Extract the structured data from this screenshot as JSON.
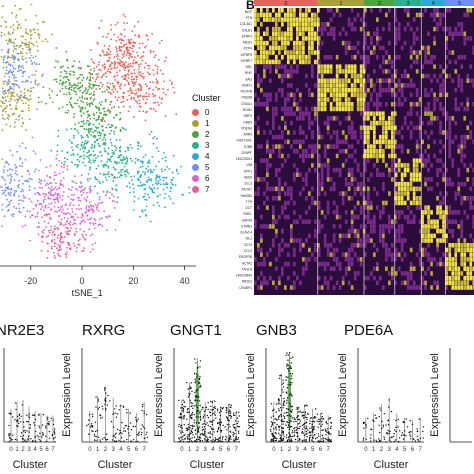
{
  "panel_b_label": "B",
  "tsne_xlabel": "tSNE_1",
  "tsne_xticks": [
    "-20",
    "0",
    "20",
    "40"
  ],
  "legend_title": "Cluster",
  "clusters": [
    {
      "label": "0",
      "color": "#e8645a"
    },
    {
      "label": "1",
      "color": "#a7a036"
    },
    {
      "label": "2",
      "color": "#4ca23f"
    },
    {
      "label": "3",
      "color": "#2bb08f"
    },
    {
      "label": "4",
      "color": "#2aa9d2"
    },
    {
      "label": "5",
      "color": "#6f8ff5"
    },
    {
      "label": "6",
      "color": "#d666d3"
    },
    {
      "label": "7",
      "color": "#e8609a"
    }
  ],
  "heatmap_bar_labels": [
    "0",
    "1",
    "2",
    "3",
    "4",
    "5"
  ],
  "heatmap_genes": [
    "MGP",
    "PTN",
    "COL1A1",
    "COL3A1",
    "CALB1",
    "ELF3",
    "COL18A1",
    "SFRP2",
    "MEG3",
    "CRYAB",
    "PCP4",
    "IGFBP5",
    "IGFBP7",
    "NRL",
    "RHO",
    "SAG",
    "GNAT1",
    "RCVRN",
    "PDE6B",
    "GNGT1",
    "CNGA1",
    "ROM1",
    "RBP3",
    "PDC",
    "GNB3",
    "PDE6H",
    "ARR3",
    "HIST1H4C",
    "TUBB",
    "CENPF",
    "MKI67",
    "TOP2A",
    "LINC00261",
    "VIM",
    "SPP1",
    "HES6",
    "DLL3",
    "ATOH7",
    "HIST2H2A",
    "HMGB2",
    "TTR",
    "DCT",
    "PMEL",
    "TYRP1",
    "GAP43",
    "STMN2",
    "ELAVL4",
    "POU4F2",
    "PRPH",
    "ISL1",
    "CD74",
    "HLA-DRA",
    "CCL3",
    "ITM2A",
    "PDGFRB",
    "ACTA2",
    "TAGLN",
    "LINC00844",
    "NR2E3",
    "CRABP1"
  ],
  "heatmap_sample_labels": [
    "MGP",
    "PTN",
    "COL3A1",
    "CALB1",
    "SFRP2",
    "MEG3",
    "PCP4",
    "IGFBP5",
    "IGFBP7",
    "NRL",
    "RHO",
    "SAG",
    "GNAT1",
    "RCVRN",
    "PDE6B",
    "CNGA1",
    "ROM1",
    "RBP3",
    "GNB3",
    "PDE6H",
    "ARR3",
    "HIST1H4C",
    "TUBB",
    "CENPF",
    "LINC00261",
    "VIM",
    "SPP1",
    "HES6",
    "DLL3",
    "ATOH7",
    "HMGB2",
    "TTR",
    "DCT",
    "PMEL",
    "GAP43",
    "STMN2",
    "ELAVL4",
    "ISL1",
    "CD74",
    "CCL3",
    "PDGFRB",
    "ACTA2",
    "TAGLN",
    "LINC00844",
    "NR2E3",
    "CRABP1"
  ],
  "violin_ylabel": "Expression Level",
  "violin_xlabel": "Cluster",
  "genes": [
    "NR2E3",
    "RXRG",
    "GNGT1",
    "GNB3",
    "PDE6A"
  ],
  "chart_data": [
    {
      "type": "scatter",
      "title": "",
      "xlabel": "tSNE_1",
      "ylabel": "",
      "xlim": [
        -32,
        46
      ],
      "xticks": [
        -20,
        0,
        20,
        40
      ],
      "legend": {
        "title": "Cluster",
        "position": "right"
      },
      "series": [
        {
          "name": "0",
          "centers": [
            [
              18,
              30
            ],
            [
              12,
              20
            ],
            [
              24,
              15
            ]
          ]
        },
        {
          "name": "1",
          "centers": [
            [
              -25,
              34
            ],
            [
              -28,
              10
            ]
          ]
        },
        {
          "name": "2",
          "centers": [
            [
              -3,
              16
            ],
            [
              6,
              5
            ]
          ]
        },
        {
          "name": "3",
          "centers": [
            [
              2,
              -8
            ],
            [
              14,
              -12
            ]
          ]
        },
        {
          "name": "4",
          "centers": [
            [
              28,
              -20
            ]
          ]
        },
        {
          "name": "5",
          "centers": [
            [
              -28,
              22
            ],
            [
              -26,
              -22
            ]
          ]
        },
        {
          "name": "6",
          "centers": [
            [
              -12,
              -26
            ],
            [
              2,
              -30
            ]
          ]
        },
        {
          "name": "7",
          "centers": [
            [
              -8,
              -42
            ]
          ]
        }
      ]
    },
    {
      "type": "heatmap",
      "columns_clusters": [
        "0",
        "1",
        "2",
        "3",
        "4",
        "5"
      ],
      "column_fraction": [
        0.29,
        0.21,
        0.14,
        0.12,
        0.11,
        0.13
      ],
      "marker_blocks": [
        {
          "cluster": "0",
          "gene_range": [
            0,
            12
          ]
        },
        {
          "cluster": "1",
          "gene_range": [
            12,
            22
          ]
        },
        {
          "cluster": "2",
          "gene_range": [
            22,
            32
          ]
        },
        {
          "cluster": "3",
          "gene_range": [
            32,
            42
          ]
        },
        {
          "cluster": "4",
          "gene_range": [
            42,
            50
          ]
        },
        {
          "cluster": "5",
          "gene_range": [
            50,
            60
          ]
        }
      ]
    },
    {
      "type": "violin",
      "xlabel": "Cluster",
      "ylabel": "Expression Level",
      "categories": [
        "0",
        "1",
        "2",
        "3",
        "4",
        "5",
        "6",
        "7"
      ],
      "series": [
        {
          "name": "NR2E3",
          "values": [
            0.6,
            0.9,
            1.0,
            0.7,
            0.5,
            0.4,
            0.3,
            0.3
          ]
        },
        {
          "name": "RXRG",
          "values": [
            0.5,
            1.2,
            1.6,
            1.1,
            0.8,
            0.6,
            0.4,
            0.9
          ]
        },
        {
          "name": "GNGT1",
          "values": [
            1.0,
            1.8,
            2.9,
            0.9,
            1.0,
            0.7,
            0.8,
            0.5
          ]
        },
        {
          "name": "GNB3",
          "values": [
            0.9,
            2.2,
            3.4,
            0.7,
            0.8,
            0.6,
            0.4,
            0.3
          ]
        },
        {
          "name": "PDE6A",
          "values": [
            0.2,
            0.4,
            0.8,
            1.1,
            0.4,
            0.2,
            0.1,
            0.2
          ]
        }
      ]
    }
  ]
}
